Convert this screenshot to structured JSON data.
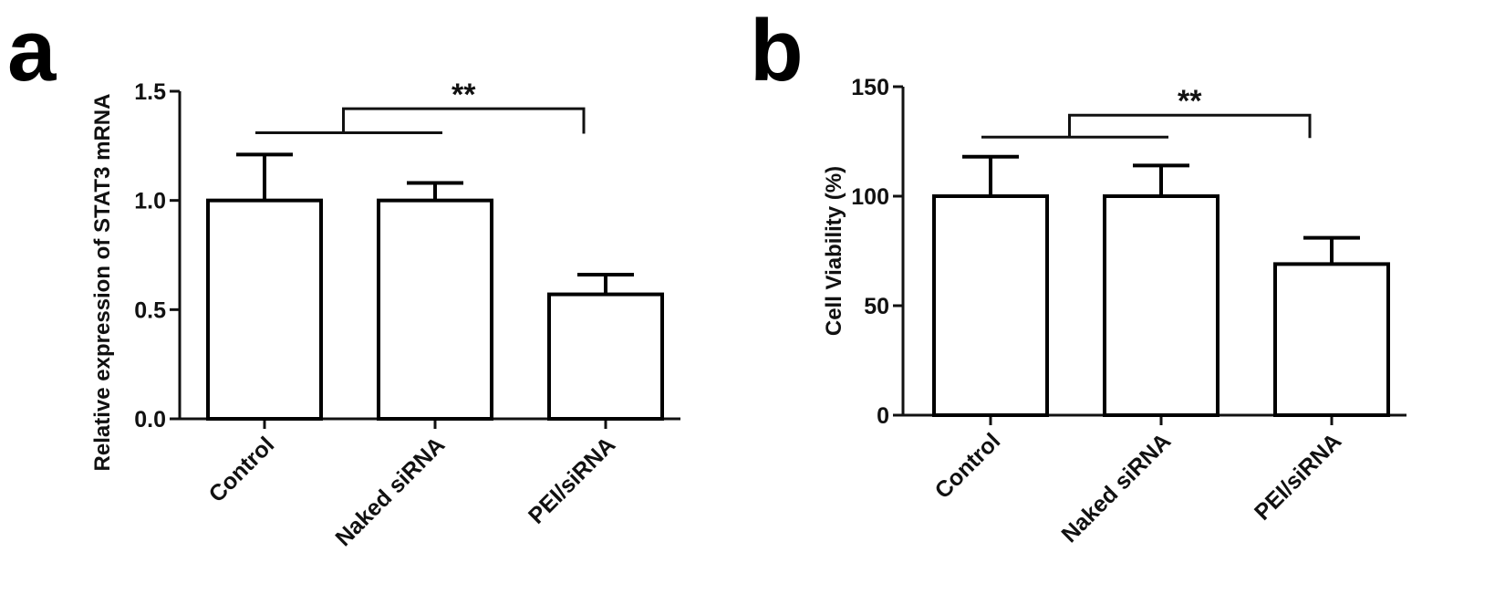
{
  "chart_data": [
    {
      "type": "bar",
      "panel_label": "a",
      "title": "",
      "xlabel": "",
      "ylabel": "Relative expression of STAT3 mRNA",
      "categories": [
        "Control",
        "Naked siRNA",
        "PEI/siRNA"
      ],
      "values": [
        1.0,
        1.0,
        0.57
      ],
      "error_upper": [
        0.21,
        0.08,
        0.09
      ],
      "ylim": [
        0,
        1.5
      ],
      "yticks": [
        0.0,
        0.5,
        1.0,
        1.5
      ],
      "ytick_labels": [
        "0.0",
        "0.5",
        "1.0",
        "1.5"
      ],
      "bar_color": "#ffffff",
      "edge_color": "#000000",
      "grid": false,
      "significance": {
        "label": "**",
        "group": [
          "Control",
          "Naked siRNA"
        ],
        "vs": "PEI/siRNA",
        "group_line_y": 1.31,
        "bracket_y": 1.42
      }
    },
    {
      "type": "bar",
      "panel_label": "b",
      "title": "",
      "xlabel": "",
      "ylabel": "Cell Viability (%)",
      "categories": [
        "Control",
        "Naked siRNA",
        "PEI/siRNA"
      ],
      "values": [
        100,
        100,
        69
      ],
      "error_upper": [
        18,
        14,
        12
      ],
      "ylim": [
        0,
        150
      ],
      "yticks": [
        0,
        50,
        100,
        150
      ],
      "ytick_labels": [
        "0",
        "50",
        "100",
        "150"
      ],
      "bar_color": "#ffffff",
      "edge_color": "#000000",
      "grid": false,
      "significance": {
        "label": "**",
        "group": [
          "Control",
          "Naked siRNA"
        ],
        "vs": "PEI/siRNA",
        "group_line_y": 127,
        "bracket_y": 137
      }
    }
  ]
}
